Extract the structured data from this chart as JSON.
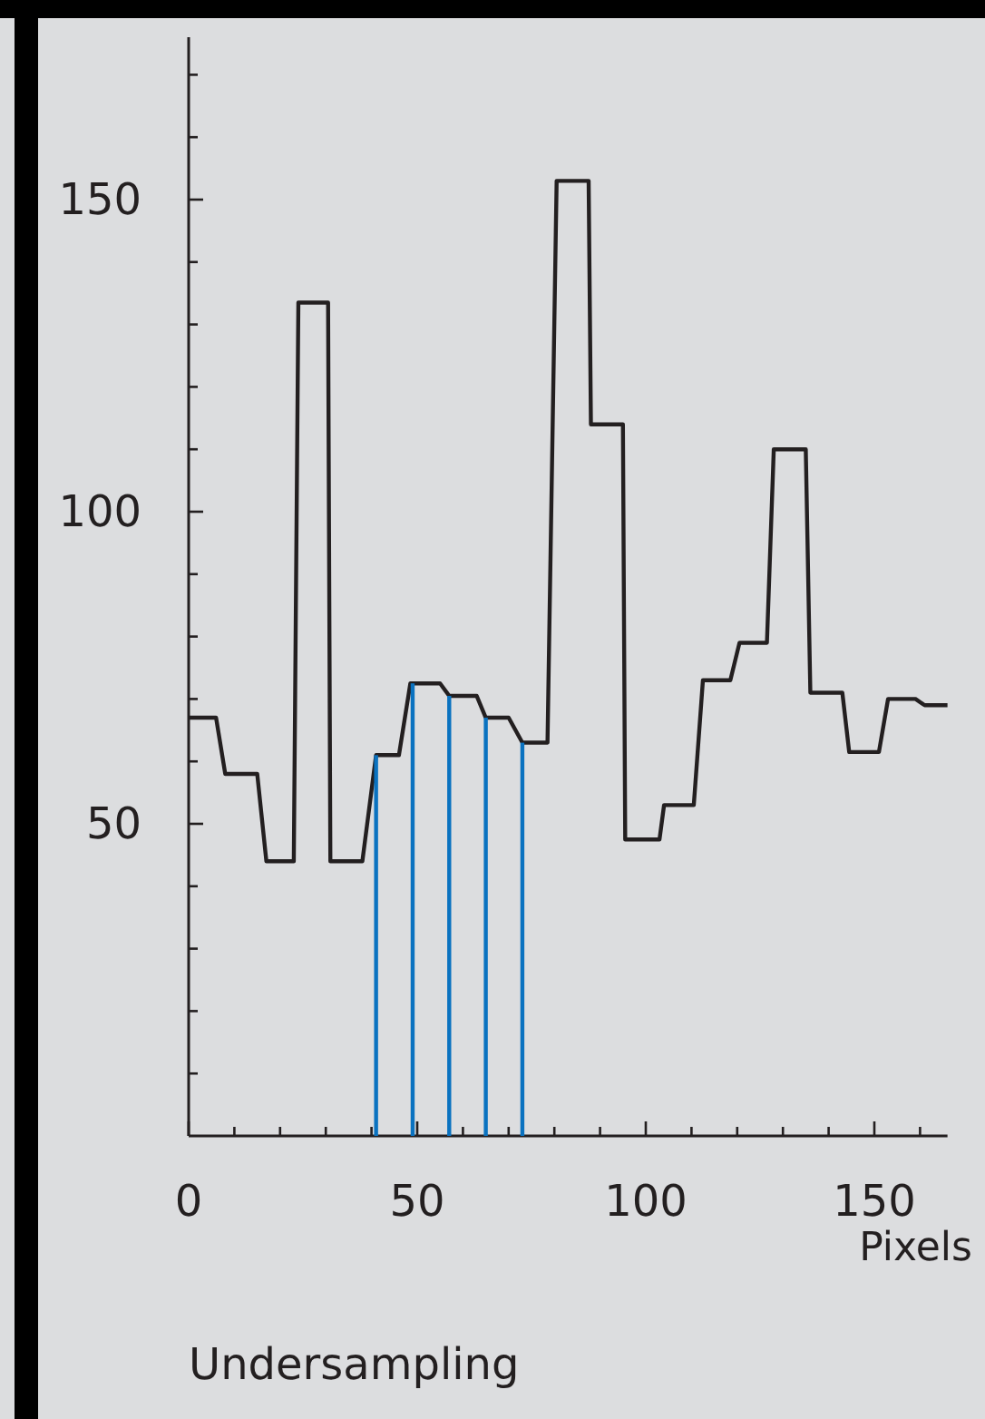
{
  "chart_data": {
    "type": "line",
    "title": "Undersampling",
    "xlabel": "Pixels",
    "xlim": [
      0,
      166
    ],
    "xticks": [
      0,
      {
        "value": 10,
        "label": null
      },
      {
        "value": 20,
        "label": null
      },
      {
        "value": 30,
        "label": null
      },
      {
        "value": 40,
        "label": null
      },
      50,
      {
        "value": 60,
        "label": null
      },
      {
        "value": 70,
        "label": null
      },
      {
        "value": 80,
        "label": null
      },
      {
        "value": 90,
        "label": null
      },
      100,
      {
        "value": 110,
        "label": null
      },
      {
        "value": 120,
        "label": null
      },
      {
        "value": 130,
        "label": null
      },
      {
        "value": 140,
        "label": null
      },
      150,
      {
        "value": 160,
        "label": null
      }
    ],
    "ylim": [
      0,
      176
    ],
    "yticks": [
      {
        "value": 10,
        "label": null
      },
      {
        "value": 20,
        "label": null
      },
      {
        "value": 30,
        "label": null
      },
      {
        "value": 40,
        "label": null
      },
      50,
      {
        "value": 60,
        "label": null
      },
      {
        "value": 70,
        "label": null
      },
      {
        "value": 80,
        "label": null
      },
      {
        "value": 90,
        "label": null
      },
      100,
      {
        "value": 110,
        "label": null
      },
      {
        "value": 120,
        "label": null
      },
      {
        "value": 130,
        "label": null
      },
      {
        "value": 140,
        "label": null
      },
      150,
      {
        "value": 160,
        "label": null
      },
      {
        "value": 170,
        "label": null
      }
    ],
    "grid": false,
    "marker": "none",
    "line_style": "solid",
    "series": [
      {
        "color": "#231f20",
        "x": [
          0,
          6,
          8,
          15,
          17,
          23,
          24,
          30.5,
          31,
          38,
          41,
          46,
          48.5,
          55,
          57,
          63,
          65,
          70,
          73,
          78.5,
          80.5,
          87.5,
          88,
          95,
          95.5,
          103,
          104,
          110.5,
          112.5,
          118.5,
          120.5,
          126.5,
          128,
          135,
          136,
          143,
          144.5,
          151,
          153,
          159,
          161,
          166
        ],
        "values": [
          67,
          67,
          58,
          58,
          44,
          44,
          133.5,
          133.5,
          44,
          44,
          61,
          61,
          72.5,
          72.5,
          70.5,
          70.5,
          67,
          67,
          63,
          63,
          153,
          153,
          114,
          114,
          47.5,
          47.5,
          53,
          53,
          73,
          73,
          79,
          79,
          110,
          110,
          71,
          71,
          61.5,
          61.5,
          70,
          70,
          69,
          69
        ]
      },
      {
        "type": "bar",
        "color": "#0a72c0",
        "x": [
          41,
          49,
          57,
          65,
          73
        ],
        "values": [
          61,
          72.5,
          70.5,
          67,
          63
        ]
      }
    ]
  }
}
